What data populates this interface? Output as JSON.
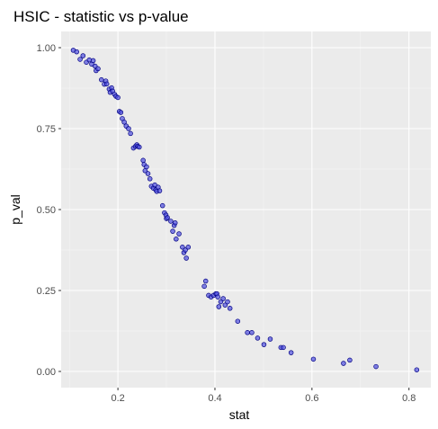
{
  "chart_data": {
    "type": "scatter",
    "title": "HSIC - statistic vs p-value",
    "xlabel": "stat",
    "ylabel": "p_val",
    "xlim": [
      0.083,
      0.845
    ],
    "ylim": [
      -0.05,
      1.05
    ],
    "x_ticks": [
      0.2,
      0.4,
      0.6,
      0.8
    ],
    "x_tick_labels": [
      "0.2",
      "0.4",
      "0.6",
      "0.8"
    ],
    "y_ticks": [
      0.0,
      0.25,
      0.5,
      0.75,
      1.0
    ],
    "y_tick_labels": [
      "0.00",
      "0.25",
      "0.50",
      "0.75",
      "1.00"
    ],
    "grid": true,
    "legend": "none",
    "colors": {
      "panel": "#ebebeb",
      "grid_major": "#ffffff",
      "grid_minor": "#f5f5f5",
      "point_fill": "#5050e0",
      "point_stroke": "#000080"
    },
    "series": [
      {
        "x": [
          0.108,
          0.115,
          0.122,
          0.128,
          0.135,
          0.141,
          0.146,
          0.149,
          0.153,
          0.155,
          0.159,
          0.166,
          0.172,
          0.175,
          0.177,
          0.182,
          0.184,
          0.187,
          0.189,
          0.193,
          0.196,
          0.2,
          0.203,
          0.206,
          0.209,
          0.213,
          0.217,
          0.222,
          0.226,
          0.232,
          0.236,
          0.239,
          0.241,
          0.244,
          0.252,
          0.254,
          0.256,
          0.259,
          0.262,
          0.266,
          0.269,
          0.273,
          0.276,
          0.278,
          0.28,
          0.283,
          0.286,
          0.292,
          0.296,
          0.299,
          0.3,
          0.302,
          0.309,
          0.313,
          0.316,
          0.318,
          0.32,
          0.326,
          0.333,
          0.336,
          0.339,
          0.341,
          0.345,
          0.378,
          0.381,
          0.387,
          0.392,
          0.397,
          0.402,
          0.404,
          0.406,
          0.408,
          0.412,
          0.417,
          0.421,
          0.426,
          0.431,
          0.447,
          0.467,
          0.476,
          0.488,
          0.501,
          0.514,
          0.536,
          0.541,
          0.557,
          0.603,
          0.665,
          0.678,
          0.732,
          0.816
        ],
        "y": [
          0.992,
          0.987,
          0.964,
          0.975,
          0.955,
          0.962,
          0.949,
          0.96,
          0.943,
          0.929,
          0.935,
          0.901,
          0.887,
          0.897,
          0.888,
          0.872,
          0.862,
          0.876,
          0.866,
          0.856,
          0.85,
          0.846,
          0.803,
          0.8,
          0.781,
          0.77,
          0.758,
          0.75,
          0.735,
          0.69,
          0.695,
          0.7,
          0.695,
          0.693,
          0.652,
          0.639,
          0.62,
          0.632,
          0.611,
          0.595,
          0.572,
          0.566,
          0.576,
          0.561,
          0.556,
          0.569,
          0.558,
          0.512,
          0.49,
          0.483,
          0.472,
          0.475,
          0.464,
          0.433,
          0.451,
          0.459,
          0.409,
          0.425,
          0.384,
          0.367,
          0.375,
          0.35,
          0.384,
          0.263,
          0.279,
          0.235,
          0.23,
          0.235,
          0.24,
          0.24,
          0.23,
          0.2,
          0.215,
          0.225,
          0.205,
          0.215,
          0.195,
          0.155,
          0.12,
          0.12,
          0.103,
          0.083,
          0.1,
          0.074,
          0.074,
          0.058,
          0.038,
          0.025,
          0.035,
          0.015,
          0.005
        ]
      }
    ]
  }
}
